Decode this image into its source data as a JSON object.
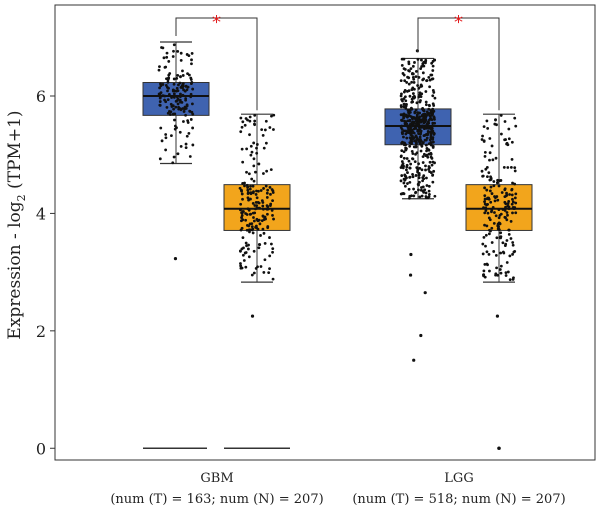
{
  "chart_data": {
    "type": "boxplot",
    "y_label_main": "Expression - log",
    "y_label_sub": "2",
    "y_label_tail": " (TPM+1)",
    "ylim": [
      -0.2,
      7.55
    ],
    "y_ticks": [
      0,
      2,
      4,
      6
    ],
    "y_tick_labels": [
      "0",
      "2",
      "4",
      "6"
    ],
    "colors": {
      "tumor": "#3f63b0",
      "normal": "#f2a51c"
    },
    "groups": [
      {
        "label": "GBM",
        "sub": "(num (T) = 163; num (N) = 207)",
        "significance": "*",
        "tumor": {
          "n": 163,
          "whisker_low": 4.85,
          "q1": 5.67,
          "median": 6.0,
          "q3": 6.23,
          "whisker_high": 6.92,
          "outliers": [
            3.23,
            0.0
          ]
        },
        "normal": {
          "n": 207,
          "whisker_low": 2.83,
          "q1": 3.71,
          "median": 4.08,
          "q3": 4.49,
          "whisker_high": 5.69,
          "outliers": [
            2.25,
            0.0
          ]
        }
      },
      {
        "label": "LGG",
        "sub": "(num (T) = 518; num (N) = 207)",
        "significance": "*",
        "tumor": {
          "n": 518,
          "whisker_low": 4.25,
          "q1": 5.17,
          "median": 5.49,
          "q3": 5.78,
          "whisker_high": 6.64,
          "outliers": [
            6.77,
            3.3,
            2.95,
            2.65,
            1.92,
            1.5
          ]
        },
        "normal": {
          "n": 207,
          "whisker_low": 2.83,
          "q1": 3.71,
          "median": 4.08,
          "q3": 4.49,
          "whisker_high": 5.69,
          "outliers": [
            2.25,
            0.0
          ]
        }
      }
    ]
  }
}
